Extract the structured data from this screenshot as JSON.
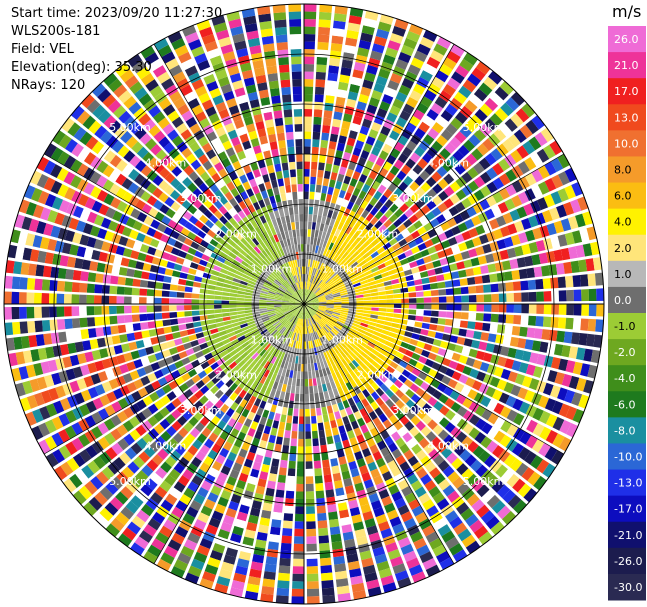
{
  "header": {
    "start_time": "Start time: 2023/09/20 11:27:30",
    "instrument": "WLS200s-181",
    "field": "Field: VEL",
    "elevation": "Elevation(deg): 35.30",
    "nrays": "NRays: 120"
  },
  "chart_data": {
    "type": "heatmap",
    "projection": "polar (PPI)",
    "field": "VEL",
    "unit": "m/s",
    "nrays": 120,
    "elevation_deg": 35.3,
    "range_ring_labels": [
      "1.00km",
      "2.00km",
      "3.00km",
      "4.00km",
      "5.00km"
    ],
    "ring_label_bearings_deg": [
      315,
      45,
      225,
      135
    ],
    "max_range_km": 6.0,
    "colorbar": {
      "unit": "m/s",
      "ticks": [
        "26.0",
        "21.0",
        "17.0",
        "13.0",
        "10.0",
        "8.0",
        "6.0",
        "4.0",
        "2.0",
        "1.0",
        "0.0",
        "-1.0",
        "-2.0",
        "-4.0",
        "-6.0",
        "-8.0",
        "-10.0",
        "-13.0",
        "-17.0",
        "-21.0",
        "-26.0",
        "-30.0"
      ],
      "tick_values": [
        26,
        21,
        17,
        13,
        10,
        8,
        6,
        4,
        2,
        1,
        0,
        -1,
        -2,
        -4,
        -6,
        -8,
        -10,
        -13,
        -17,
        -21,
        -26,
        -30
      ],
      "bounds": [
        30,
        26,
        21,
        17,
        13,
        10,
        8,
        6,
        4,
        2,
        1,
        0,
        -1,
        -2,
        -4,
        -6,
        -8,
        -10,
        -13,
        -17,
        -21,
        -26,
        -30
      ],
      "colors": [
        "#ef6bd6",
        "#ee3399",
        "#f02020",
        "#f04a1e",
        "#f07030",
        "#f59b2a",
        "#fbbd12",
        "#fff200",
        "#ffe57a",
        "#b8b8b8",
        "#6e6e6e",
        "#9ccc35",
        "#6ea820",
        "#3f8e1b",
        "#1e7a1e",
        "#1a8fa0",
        "#2b67d6",
        "#1f2fe8",
        "#0d0dbf",
        "#10106e",
        "#1c1c4e",
        "#2a2a52"
      ]
    },
    "regions": {
      "inner_radius_km": 0.9,
      "signal_radius_km": 2.15,
      "yellow_bearings_deg": [
        [
          20,
          160
        ]
      ],
      "green_bearings_deg": [
        [
          200,
          340
        ]
      ],
      "inner_pattern": "mixed yellow/green/grey near origin"
    }
  }
}
